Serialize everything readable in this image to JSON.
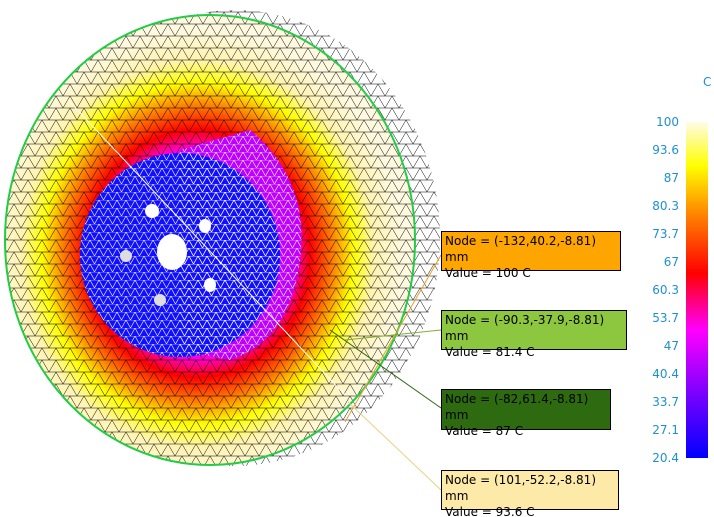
{
  "legend": {
    "unit": "C",
    "ticks": [
      "100",
      "93.6",
      "87",
      "80.3",
      "73.7",
      "67",
      "60.3",
      "53.7",
      "47",
      "40.4",
      "33.7",
      "27.1",
      "20.4"
    ]
  },
  "probes": [
    {
      "node": "Node = (-132,40.2,-8.81) mm",
      "value": "Value = 100 C"
    },
    {
      "node": "Node = (-90.3,-37.9,-8.81) mm",
      "value": "Value = 81.4 C"
    },
    {
      "node": "Node = (-82,61.4,-8.81) mm",
      "value": "Value = 87 C"
    },
    {
      "node": "Node = (101,-52.2,-8.81) mm",
      "value": "Value = 93.6 C"
    }
  ]
}
